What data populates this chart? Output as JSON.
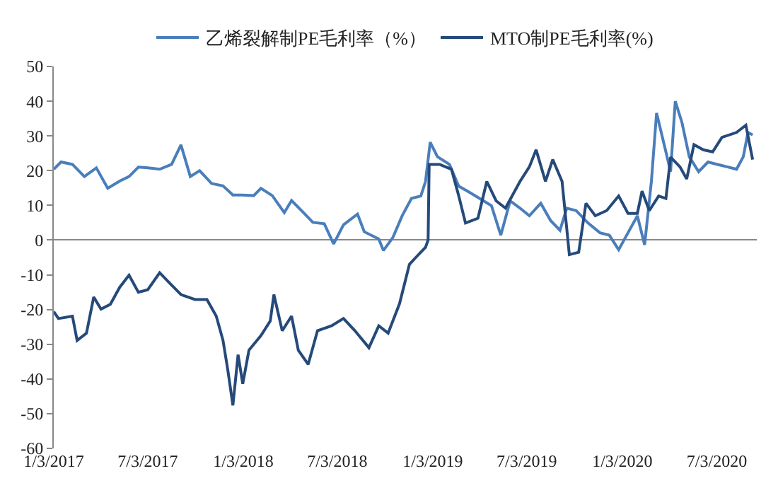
{
  "chart_data": {
    "type": "line",
    "legend": "top",
    "marker": "none",
    "line_style": "solid",
    "xlim": [
      "2017-01-03",
      "2020-09-18"
    ],
    "xticks": [
      {
        "value": "2017-01-03",
        "label": "1/3/2017"
      },
      {
        "value": "2017-07-03",
        "label": "7/3/2017"
      },
      {
        "value": "2018-01-03",
        "label": "1/3/2018"
      },
      {
        "value": "2018-07-03",
        "label": "7/3/2018"
      },
      {
        "value": "2019-01-03",
        "label": "1/3/2019"
      },
      {
        "value": "2019-07-03",
        "label": "7/3/2019"
      },
      {
        "value": "2020-01-03",
        "label": "1/3/2020"
      },
      {
        "value": "2020-07-03",
        "label": "7/3/2020"
      }
    ],
    "ylim": [
      -60,
      50
    ],
    "yticks": [
      -60,
      -50,
      -40,
      -30,
      -20,
      -10,
      0,
      10,
      20,
      30,
      40,
      50
    ],
    "series": [
      {
        "name": "乙烯裂解制PE毛利率（%）",
        "color": "#4a7ebb",
        "x": [
          "2017-01-03",
          "2017-01-17",
          "2017-02-08",
          "2017-03-03",
          "2017-03-26",
          "2017-04-17",
          "2017-05-10",
          "2017-05-28",
          "2017-06-15",
          "2017-07-03",
          "2017-07-26",
          "2017-08-18",
          "2017-09-05",
          "2017-09-23",
          "2017-10-11",
          "2017-11-03",
          "2017-11-25",
          "2017-12-14",
          "2018-01-01",
          "2018-01-23",
          "2018-02-06",
          "2018-02-28",
          "2018-03-23",
          "2018-04-06",
          "2018-04-29",
          "2018-05-17",
          "2018-06-08",
          "2018-06-26",
          "2018-07-15",
          "2018-08-11",
          "2018-08-24",
          "2018-09-21",
          "2018-09-30",
          "2018-10-18",
          "2018-11-05",
          "2018-11-23",
          "2018-12-11",
          "2018-12-20",
          "2018-12-29",
          "2019-01-12",
          "2019-02-04",
          "2019-02-22",
          "2019-03-12",
          "2019-04-03",
          "2019-04-26",
          "2019-05-14",
          "2019-06-01",
          "2019-06-20",
          "2019-07-08",
          "2019-07-30",
          "2019-08-18",
          "2019-09-05",
          "2019-09-18",
          "2019-10-06",
          "2019-10-29",
          "2019-11-21",
          "2019-12-09",
          "2019-12-27",
          "2020-01-14",
          "2020-02-01",
          "2020-02-15",
          "2020-02-28",
          "2020-03-09",
          "2020-03-18",
          "2020-03-27",
          "2020-04-05",
          "2020-04-14",
          "2020-04-27",
          "2020-05-11",
          "2020-05-29",
          "2020-06-16",
          "2020-07-04",
          "2020-07-23",
          "2020-08-10",
          "2020-08-23",
          "2020-09-01",
          "2020-09-10"
        ],
        "values": [
          20.4,
          22.5,
          21.8,
          18.3,
          20.8,
          14.9,
          17,
          18.3,
          21,
          20.8,
          20.4,
          21.8,
          27.4,
          18.3,
          20,
          16.3,
          15.6,
          13,
          13,
          12.8,
          14.9,
          12.8,
          7.9,
          11.4,
          7.9,
          5.1,
          4.7,
          -1.1,
          4.4,
          7.5,
          2.4,
          0.3,
          -3,
          0.7,
          7,
          12,
          12.7,
          16.9,
          28.2,
          24,
          21.8,
          15.5,
          14,
          12,
          9.9,
          1.4,
          11.3,
          9.2,
          7,
          10.6,
          5.6,
          2.8,
          9.2,
          8.5,
          4.9,
          2.1,
          1.4,
          -2.8,
          2.1,
          7,
          -1.4,
          16.9,
          36.6,
          31,
          25.4,
          19.7,
          40,
          33.8,
          24,
          19.7,
          22.5,
          21.8,
          21.1,
          20.4,
          24,
          31,
          30.3
        ]
      },
      {
        "name": "MTO制PE毛利率(%)",
        "color": "#254a7a",
        "x": [
          "2017-01-03",
          "2017-01-12",
          "2017-02-08",
          "2017-02-17",
          "2017-03-07",
          "2017-03-21",
          "2017-04-04",
          "2017-04-22",
          "2017-05-10",
          "2017-05-28",
          "2017-06-15",
          "2017-07-03",
          "2017-07-26",
          "2017-08-13",
          "2017-09-05",
          "2017-10-02",
          "2017-10-25",
          "2017-11-12",
          "2017-11-25",
          "2017-12-04",
          "2017-12-14",
          "2017-12-24",
          "2018-01-02",
          "2018-01-14",
          "2018-02-06",
          "2018-02-24",
          "2018-03-03",
          "2018-03-19",
          "2018-04-06",
          "2018-04-19",
          "2018-05-08",
          "2018-05-26",
          "2018-06-22",
          "2018-07-15",
          "2018-08-06",
          "2018-09-02",
          "2018-09-21",
          "2018-10-09",
          "2018-10-31",
          "2018-11-19",
          "2018-12-02",
          "2018-12-20",
          "2018-12-25",
          "2018-12-27",
          "2019-01-16",
          "2019-02-08",
          "2019-02-22",
          "2019-03-07",
          "2019-03-31",
          "2019-04-17",
          "2019-05-05",
          "2019-05-23",
          "2019-06-20",
          "2019-07-08",
          "2019-07-21",
          "2019-08-08",
          "2019-08-22",
          "2019-09-09",
          "2019-09-23",
          "2019-10-11",
          "2019-10-25",
          "2019-11-12",
          "2019-12-04",
          "2019-12-27",
          "2020-01-14",
          "2020-02-01",
          "2020-02-10",
          "2020-02-24",
          "2020-03-13",
          "2020-03-27",
          "2020-04-05",
          "2020-04-23",
          "2020-05-06",
          "2020-05-20",
          "2020-06-07",
          "2020-06-25",
          "2020-07-13",
          "2020-08-10",
          "2020-08-28",
          "2020-09-10"
        ],
        "values": [
          -20.6,
          -22.6,
          -21.9,
          -28.9,
          -26.8,
          -16.4,
          -19.9,
          -18.5,
          -13.6,
          -10.1,
          -15,
          -14.3,
          -9.4,
          -12.2,
          -15.7,
          -17.1,
          -17.1,
          -21.9,
          -28.9,
          -37.2,
          -47.6,
          -33,
          -41.4,
          -31.7,
          -27.5,
          -23.3,
          -15.7,
          -26.1,
          -21.9,
          -31.7,
          -35.8,
          -26.1,
          -24.7,
          -22.6,
          -26.1,
          -31,
          -24.7,
          -26.8,
          -18.3,
          -7,
          -4.9,
          -2.1,
          0,
          21.8,
          21.8,
          20.4,
          12.7,
          4.9,
          6.3,
          16.9,
          11.3,
          9.2,
          16.9,
          21.1,
          26,
          16.9,
          23.2,
          16.9,
          -4.2,
          -3.5,
          10.6,
          7,
          8.5,
          12.7,
          7.7,
          7.7,
          14.1,
          8.5,
          12.7,
          12,
          23.9,
          21.1,
          17.6,
          27.5,
          26,
          25.4,
          29.6,
          31,
          33.1,
          23.2
        ]
      }
    ]
  }
}
